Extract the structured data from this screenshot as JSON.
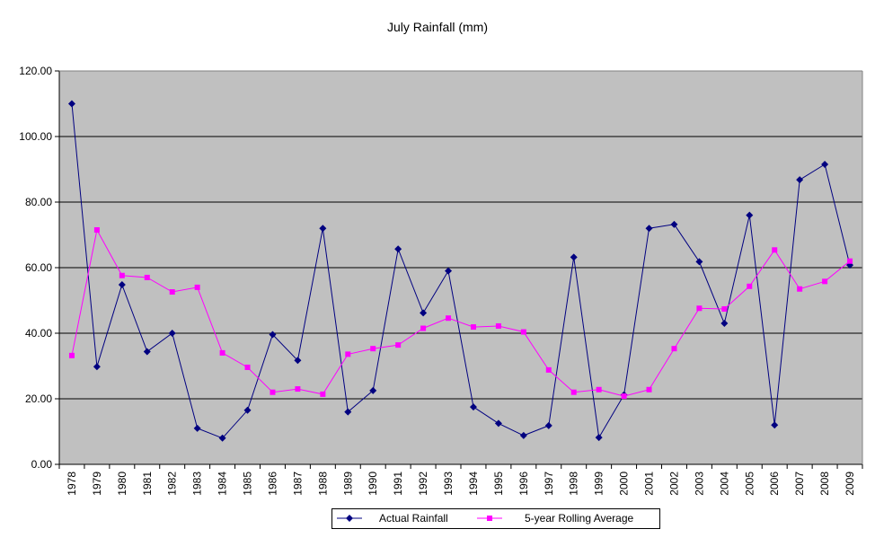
{
  "chart_data": {
    "type": "line",
    "title": "July Rainfall (mm)",
    "xlabel": "",
    "ylabel": "",
    "ylim": [
      0,
      120
    ],
    "yticks": [
      "0.00",
      "20.00",
      "40.00",
      "60.00",
      "80.00",
      "100.00",
      "120.00"
    ],
    "grid": true,
    "legend_position": "bottom",
    "plot_background": "#C0C0C0",
    "categories": [
      "1978",
      "1979",
      "1980",
      "1981",
      "1982",
      "1983",
      "1984",
      "1985",
      "1986",
      "1987",
      "1988",
      "1989",
      "1990",
      "1991",
      "1992",
      "1993",
      "1994",
      "1995",
      "1996",
      "1997",
      "1998",
      "1999",
      "2000",
      "2001",
      "2002",
      "2003",
      "2004",
      "2005",
      "2006",
      "2007",
      "2008",
      "2009"
    ],
    "series": [
      {
        "name": "Actual Rainfall",
        "color": "#000080",
        "marker": "diamond",
        "values": [
          110.0,
          29.8,
          54.8,
          34.4,
          40.0,
          11.0,
          8.0,
          16.5,
          39.6,
          31.7,
          72.0,
          16.0,
          22.5,
          65.7,
          46.2,
          59.0,
          17.5,
          12.5,
          8.8,
          11.8,
          63.2,
          8.2,
          21.2,
          72.0,
          73.2,
          61.8,
          43.0,
          76.0,
          12.0,
          86.8,
          91.5,
          60.8
        ]
      },
      {
        "name": "5-year Rolling Average",
        "color": "#FF00FF",
        "marker": "square",
        "values": [
          33.2,
          71.5,
          57.6,
          57.0,
          52.6,
          54.0,
          34.0,
          29.6,
          22.0,
          23.0,
          21.4,
          33.6,
          35.3,
          36.4,
          41.5,
          44.6,
          41.9,
          42.2,
          40.4,
          28.8,
          22.0,
          22.8,
          20.8,
          22.8,
          35.3,
          47.6,
          47.4,
          54.3,
          65.4,
          53.5,
          55.8,
          62.0
        ]
      }
    ]
  }
}
